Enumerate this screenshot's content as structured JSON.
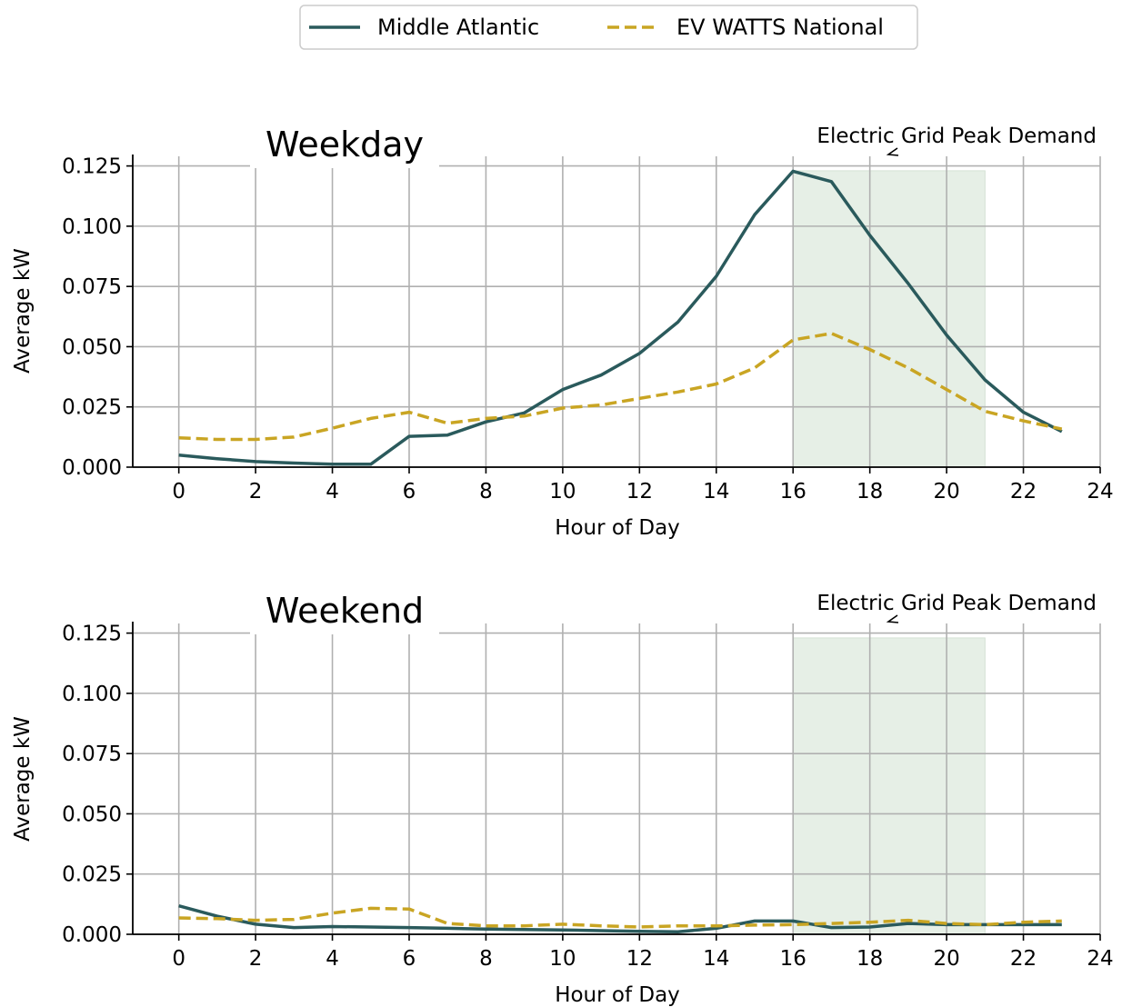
{
  "legend": {
    "entries": [
      {
        "label": "Middle Atlantic",
        "color": "#2a5a5c",
        "style": "solid"
      },
      {
        "label": "EV WATTS National",
        "color": "#c9a523",
        "style": "dashed"
      }
    ],
    "placement": "top-center"
  },
  "chart_data": [
    {
      "type": "line",
      "title": "Weekday",
      "xlabel": "Hour of Day",
      "ylabel": "Average kW",
      "xlim": [
        -1.2,
        24.0
      ],
      "ylim": [
        0,
        0.129
      ],
      "xticks": [
        0,
        2,
        4,
        6,
        8,
        10,
        12,
        14,
        16,
        18,
        20,
        22,
        24
      ],
      "yticks": [
        0.0,
        0.025,
        0.05,
        0.075,
        0.1,
        0.125
      ],
      "ytick_labels": [
        "0.000",
        "0.025",
        "0.050",
        "0.075",
        "0.100",
        "0.125"
      ],
      "grid": true,
      "shaded_region": {
        "x_start": 16,
        "x_end": 21,
        "y_top": 0.123,
        "color": "#e6efe6"
      },
      "annotation": {
        "text": "Electric Grid Peak Demand",
        "placement": "top-right"
      },
      "x": [
        0,
        1,
        2,
        3,
        4,
        5,
        6,
        7,
        8,
        9,
        10,
        11,
        12,
        13,
        14,
        15,
        16,
        17,
        18,
        19,
        20,
        21,
        22,
        23
      ],
      "series": [
        {
          "name": "Middle Atlantic",
          "color": "#2a5a5c",
          "style": "solid",
          "values": [
            0.005,
            0.0035,
            0.0023,
            0.0017,
            0.0012,
            0.0012,
            0.0128,
            0.0133,
            0.0188,
            0.0225,
            0.0322,
            0.0382,
            0.0472,
            0.0602,
            0.0792,
            0.1048,
            0.1228,
            0.1185,
            0.0962,
            0.0762,
            0.0548,
            0.0362,
            0.0228,
            0.0148
          ]
        },
        {
          "name": "EV WATTS National",
          "color": "#c9a523",
          "style": "dashed",
          "values": [
            0.0122,
            0.0115,
            0.0115,
            0.0125,
            0.0162,
            0.0202,
            0.0228,
            0.0182,
            0.0202,
            0.0212,
            0.0245,
            0.0258,
            0.0285,
            0.0312,
            0.0345,
            0.0412,
            0.0528,
            0.0555,
            0.0488,
            0.0412,
            0.0322,
            0.0232,
            0.0192,
            0.0158
          ]
        }
      ]
    },
    {
      "type": "line",
      "title": "Weekend",
      "xlabel": "Hour of Day",
      "ylabel": "Average kW",
      "xlim": [
        -1.2,
        24.0
      ],
      "ylim": [
        0,
        0.129
      ],
      "xticks": [
        0,
        2,
        4,
        6,
        8,
        10,
        12,
        14,
        16,
        18,
        20,
        22,
        24
      ],
      "yticks": [
        0.0,
        0.025,
        0.05,
        0.075,
        0.1,
        0.125
      ],
      "ytick_labels": [
        "0.000",
        "0.025",
        "0.050",
        "0.075",
        "0.100",
        "0.125"
      ],
      "grid": true,
      "shaded_region": {
        "x_start": 16,
        "x_end": 21,
        "y_top": 0.123,
        "color": "#e6efe6"
      },
      "annotation": {
        "text": "Electric Grid Peak Demand",
        "placement": "top-right"
      },
      "x": [
        0,
        1,
        2,
        3,
        4,
        5,
        6,
        7,
        8,
        9,
        10,
        11,
        12,
        13,
        14,
        15,
        16,
        17,
        18,
        19,
        20,
        21,
        22,
        23
      ],
      "series": [
        {
          "name": "Middle Atlantic",
          "color": "#2a5a5c",
          "style": "solid",
          "values": [
            0.0118,
            0.0075,
            0.0042,
            0.0028,
            0.0032,
            0.003,
            0.0028,
            0.0025,
            0.0022,
            0.002,
            0.0018,
            0.0015,
            0.0012,
            0.001,
            0.0025,
            0.0055,
            0.0055,
            0.0028,
            0.003,
            0.0045,
            0.004,
            0.004,
            0.004,
            0.004
          ]
        },
        {
          "name": "EV WATTS National",
          "color": "#c9a523",
          "style": "dashed",
          "values": [
            0.0068,
            0.0065,
            0.0058,
            0.0062,
            0.0088,
            0.0108,
            0.0105,
            0.0045,
            0.0035,
            0.0035,
            0.0042,
            0.0035,
            0.003,
            0.0035,
            0.0035,
            0.0038,
            0.004,
            0.0045,
            0.005,
            0.0058,
            0.0045,
            0.004,
            0.005,
            0.0055
          ]
        }
      ]
    }
  ]
}
